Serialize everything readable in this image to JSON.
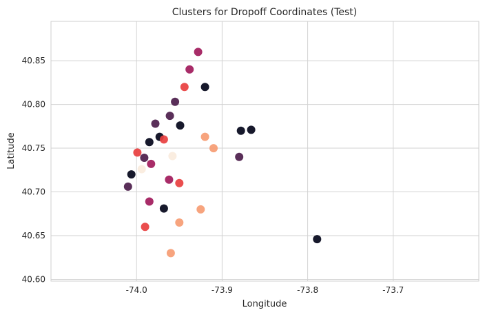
{
  "chart_data": {
    "type": "scatter",
    "title": "Clusters for Dropoff Coordinates (Test)",
    "xlabel": "Longitude",
    "ylabel": "Latitude",
    "xlim": [
      -74.1,
      -73.6
    ],
    "ylim": [
      40.598,
      40.895
    ],
    "xticks": [
      -74.0,
      -73.9,
      -73.8,
      -73.7
    ],
    "xtick_labels": [
      "-74.0",
      "-73.9",
      "-73.8",
      "-73.7"
    ],
    "yticks": [
      40.6,
      40.65,
      40.7,
      40.75,
      40.8,
      40.85
    ],
    "ytick_labels": [
      "40.60",
      "40.65",
      "40.70",
      "40.75",
      "40.80",
      "40.85"
    ],
    "grid": true,
    "legend": "none",
    "colormap": [
      "#03051a",
      "#4c1d4b",
      "#a11a5b",
      "#e83f3f",
      "#f69c73",
      "#faebdd"
    ],
    "cluster_centers": [
      {
        "lon": -73.949,
        "lat": 40.776,
        "color": "#03051a"
      },
      {
        "lon": -73.961,
        "lat": 40.787,
        "color": "#4c1d4b"
      },
      {
        "lon": -73.973,
        "lat": 40.763,
        "color": "#03051a"
      },
      {
        "lon": -73.985,
        "lat": 40.757,
        "color": "#03051a"
      },
      {
        "lon": -73.991,
        "lat": 40.739,
        "color": "#4c1d4b"
      },
      {
        "lon": -73.983,
        "lat": 40.732,
        "color": "#a11a5b"
      },
      {
        "lon": -74.006,
        "lat": 40.72,
        "color": "#03051a"
      },
      {
        "lon": -74.01,
        "lat": 40.706,
        "color": "#4c1d4b"
      },
      {
        "lon": -73.999,
        "lat": 40.745,
        "color": "#e83f3f"
      },
      {
        "lon": -73.978,
        "lat": 40.778,
        "color": "#4c1d4b"
      },
      {
        "lon": -73.955,
        "lat": 40.803,
        "color": "#4c1d4b"
      },
      {
        "lon": -73.944,
        "lat": 40.82,
        "color": "#e83f3f"
      },
      {
        "lon": -73.938,
        "lat": 40.84,
        "color": "#a11a5b"
      },
      {
        "lon": -73.928,
        "lat": 40.86,
        "color": "#a11a5b"
      },
      {
        "lon": -73.968,
        "lat": 40.76,
        "color": "#e83f3f"
      },
      {
        "lon": -73.994,
        "lat": 40.726,
        "color": "#faebdd"
      },
      {
        "lon": -73.958,
        "lat": 40.741,
        "color": "#faebdd"
      },
      {
        "lon": -73.962,
        "lat": 40.714,
        "color": "#a11a5b"
      },
      {
        "lon": -73.985,
        "lat": 40.689,
        "color": "#a11a5b"
      },
      {
        "lon": -73.968,
        "lat": 40.681,
        "color": "#03051a"
      },
      {
        "lon": -73.95,
        "lat": 40.665,
        "color": "#f69c73"
      },
      {
        "lon": -73.925,
        "lat": 40.68,
        "color": "#f69c73"
      },
      {
        "lon": -73.91,
        "lat": 40.75,
        "color": "#f69c73"
      },
      {
        "lon": -73.92,
        "lat": 40.763,
        "color": "#f69c73"
      },
      {
        "lon": -73.878,
        "lat": 40.77,
        "color": "#03051a"
      },
      {
        "lon": -73.866,
        "lat": 40.771,
        "color": "#03051a"
      },
      {
        "lon": -73.789,
        "lat": 40.646,
        "color": "#03051a"
      },
      {
        "lon": -73.95,
        "lat": 40.71,
        "color": "#e83f3f"
      },
      {
        "lon": -73.92,
        "lat": 40.82,
        "color": "#03051a"
      },
      {
        "lon": -73.88,
        "lat": 40.74,
        "color": "#4c1d4b"
      },
      {
        "lon": -73.99,
        "lat": 40.66,
        "color": "#e83f3f"
      },
      {
        "lon": -73.96,
        "lat": 40.63,
        "color": "#f69c73"
      }
    ]
  }
}
